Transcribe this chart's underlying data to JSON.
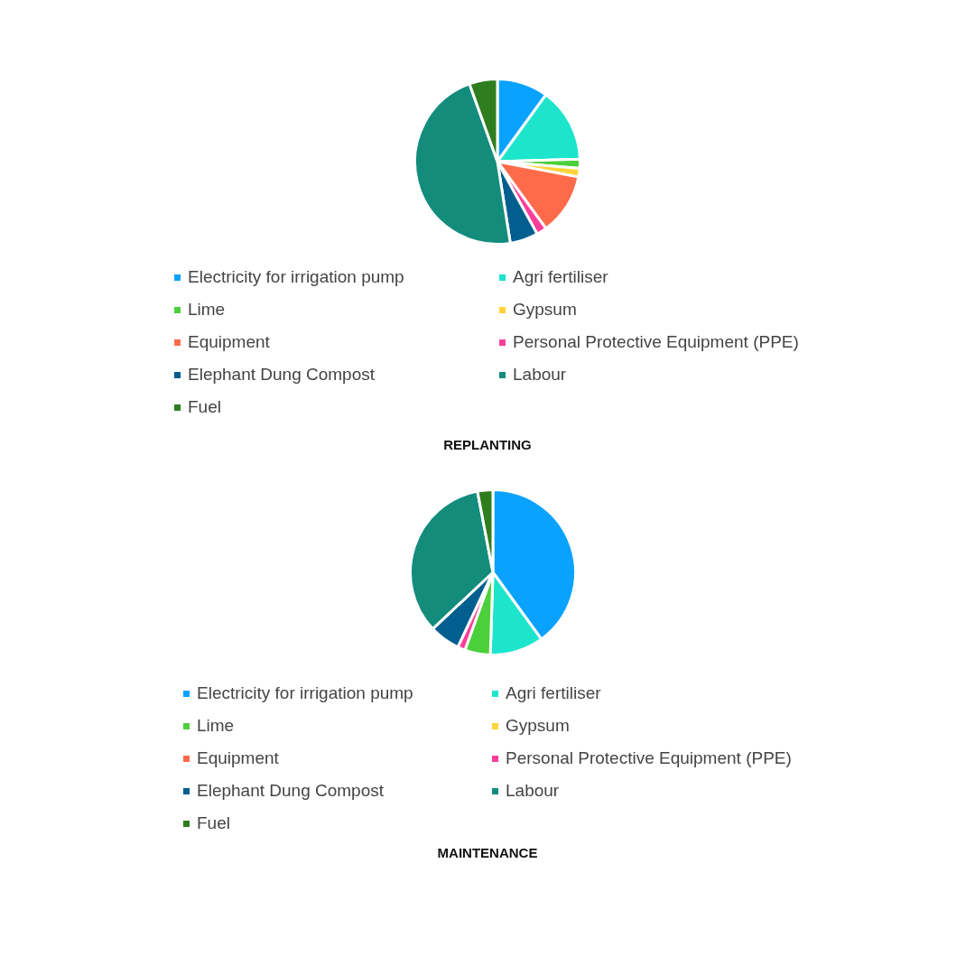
{
  "chart_data": [
    {
      "type": "pie",
      "title": "REPLANTING",
      "legend": "bottom",
      "categories": [
        "Electricity for irrigation pump",
        "Agri fertiliser",
        "Lime",
        "Gypsum",
        "Equipment",
        "Personal Protective Equipment (PPE)",
        "Elephant Dung Compost",
        "Labour",
        "Fuel"
      ],
      "values": [
        10,
        14.5,
        1.8,
        1.7,
        12,
        2,
        5.5,
        47,
        5.5
      ],
      "colors": [
        "#0aa2ff",
        "#1de5cc",
        "#4cd03c",
        "#ffd43b",
        "#ff6b4a",
        "#ff3d9a",
        "#005f8f",
        "#138c7c",
        "#2e7d1e"
      ]
    },
    {
      "type": "pie",
      "title": "MAINTENANCE",
      "legend": "bottom",
      "categories": [
        "Electricity for irrigation pump",
        "Agri fertiliser",
        "Lime",
        "Gypsum",
        "Equipment",
        "Personal Protective Equipment (PPE)",
        "Elephant Dung Compost",
        "Labour",
        "Fuel"
      ],
      "values": [
        40,
        10.5,
        5,
        0,
        0,
        1.5,
        6,
        34,
        3
      ],
      "colors": [
        "#0aa2ff",
        "#1de5cc",
        "#4cd03c",
        "#ffd43b",
        "#ff6b4a",
        "#ff3d9a",
        "#005f8f",
        "#138c7c",
        "#2e7d1e"
      ]
    }
  ]
}
